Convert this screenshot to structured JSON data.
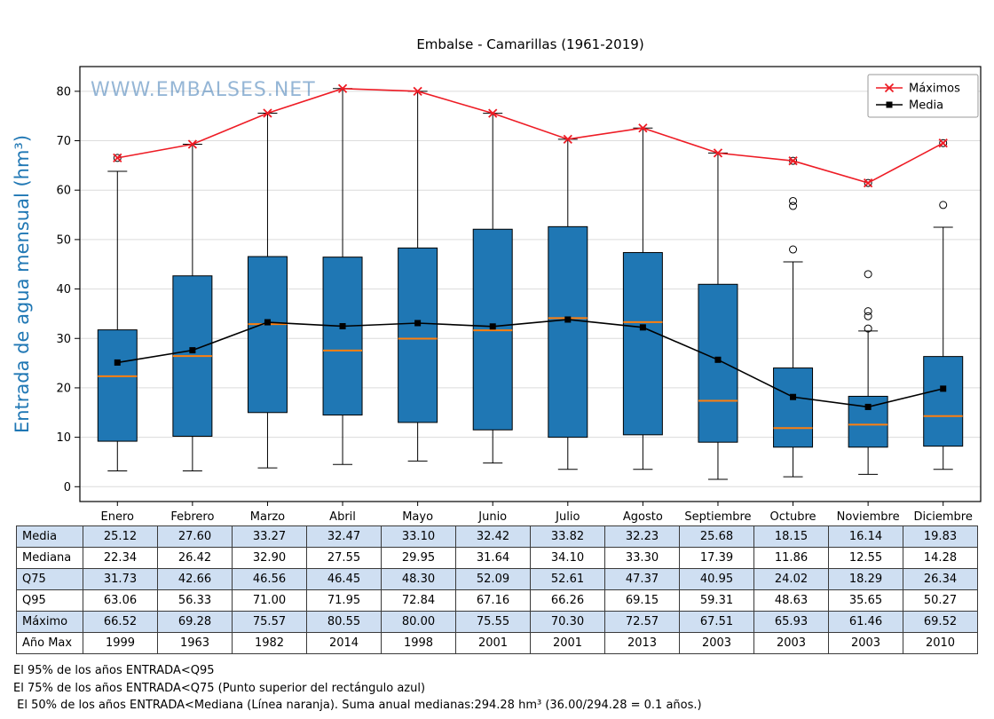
{
  "watermark": {
    "text": "WWW.EMBALSES.NET",
    "color": "#3f7cb6"
  },
  "chart_data": {
    "type": "boxplot",
    "title": "Embalse - Camarillas (1961-2019)",
    "ylabel": "Entrada de agua mensual (hm³)",
    "ylabel_color": "#1f77b4",
    "ylim": [
      -3,
      85
    ],
    "yticks": [
      0,
      10,
      20,
      30,
      40,
      50,
      60,
      70,
      80
    ],
    "grid": "horizontal",
    "legend_position": "top-right",
    "categories": [
      "Enero",
      "Febrero",
      "Marzo",
      "Abril",
      "Mayo",
      "Junio",
      "Julio",
      "Agosto",
      "Septiembre",
      "Octubre",
      "Noviembre",
      "Diciembre"
    ],
    "box_color": "#1f77b4",
    "median_color": "#ff7f0e",
    "boxes": [
      {
        "whisker_low": 3.2,
        "q1": 9.2,
        "median": 22.34,
        "q3": 31.73,
        "whisker_high": 63.8,
        "outliers": [
          66.52
        ]
      },
      {
        "whisker_low": 3.2,
        "q1": 10.2,
        "median": 26.42,
        "q3": 42.66,
        "whisker_high": 69.28,
        "outliers": []
      },
      {
        "whisker_low": 3.8,
        "q1": 15.0,
        "median": 32.9,
        "q3": 46.56,
        "whisker_high": 75.57,
        "outliers": []
      },
      {
        "whisker_low": 4.5,
        "q1": 14.5,
        "median": 27.55,
        "q3": 46.45,
        "whisker_high": 80.55,
        "outliers": []
      },
      {
        "whisker_low": 5.2,
        "q1": 13.0,
        "median": 29.95,
        "q3": 48.3,
        "whisker_high": 80.0,
        "outliers": []
      },
      {
        "whisker_low": 4.8,
        "q1": 11.5,
        "median": 31.64,
        "q3": 52.09,
        "whisker_high": 75.55,
        "outliers": []
      },
      {
        "whisker_low": 3.5,
        "q1": 10.0,
        "median": 34.1,
        "q3": 52.61,
        "whisker_high": 70.3,
        "outliers": []
      },
      {
        "whisker_low": 3.5,
        "q1": 10.5,
        "median": 33.3,
        "q3": 47.37,
        "whisker_high": 72.57,
        "outliers": []
      },
      {
        "whisker_low": 1.5,
        "q1": 9.0,
        "median": 17.39,
        "q3": 40.95,
        "whisker_high": 67.51,
        "outliers": []
      },
      {
        "whisker_low": 2.0,
        "q1": 8.0,
        "median": 11.86,
        "q3": 24.02,
        "whisker_high": 45.5,
        "outliers": [
          48.0,
          56.8,
          57.8,
          65.93
        ]
      },
      {
        "whisker_low": 2.5,
        "q1": 8.0,
        "median": 12.55,
        "q3": 18.29,
        "whisker_high": 31.5,
        "outliers": [
          32.0,
          34.5,
          35.5,
          43.0,
          61.46
        ]
      },
      {
        "whisker_low": 3.5,
        "q1": 8.2,
        "median": 14.28,
        "q3": 26.34,
        "whisker_high": 52.5,
        "outliers": [
          57.0,
          69.52
        ]
      }
    ],
    "series": [
      {
        "name": "Máximos",
        "color": "#ee1c25",
        "marker": "x",
        "values": [
          66.52,
          69.28,
          75.57,
          80.55,
          80.0,
          75.55,
          70.3,
          72.57,
          67.51,
          65.93,
          61.46,
          69.52
        ]
      },
      {
        "name": "Media",
        "color": "#000000",
        "marker": "square",
        "values": [
          25.12,
          27.6,
          33.27,
          32.47,
          33.1,
          32.42,
          33.82,
          32.23,
          25.68,
          18.15,
          16.14,
          19.83
        ]
      }
    ]
  },
  "table": {
    "shade_color": "#cfdff2",
    "rows": [
      {
        "label": "Media",
        "values": [
          "25.12",
          "27.60",
          "33.27",
          "32.47",
          "33.10",
          "32.42",
          "33.82",
          "32.23",
          "25.68",
          "18.15",
          "16.14",
          "19.83"
        ]
      },
      {
        "label": "Mediana",
        "values": [
          "22.34",
          "26.42",
          "32.90",
          "27.55",
          "29.95",
          "31.64",
          "34.10",
          "33.30",
          "17.39",
          "11.86",
          "12.55",
          "14.28"
        ]
      },
      {
        "label": "Q75",
        "values": [
          "31.73",
          "42.66",
          "46.56",
          "46.45",
          "48.30",
          "52.09",
          "52.61",
          "47.37",
          "40.95",
          "24.02",
          "18.29",
          "26.34"
        ]
      },
      {
        "label": "Q95",
        "values": [
          "63.06",
          "56.33",
          "71.00",
          "71.95",
          "72.84",
          "67.16",
          "66.26",
          "69.15",
          "59.31",
          "48.63",
          "35.65",
          "50.27"
        ]
      },
      {
        "label": "Máximo",
        "values": [
          "66.52",
          "69.28",
          "75.57",
          "80.55",
          "80.00",
          "75.55",
          "70.30",
          "72.57",
          "67.51",
          "65.93",
          "61.46",
          "69.52"
        ]
      },
      {
        "label": "Año Max",
        "values": [
          "1999",
          "1963",
          "1982",
          "2014",
          "1998",
          "2001",
          "2001",
          "2013",
          "2003",
          "2003",
          "2003",
          "2010"
        ]
      }
    ]
  },
  "footnotes": [
    "El 95% de los años ENTRADA<Q95",
    "El 75% de los años ENTRADA<Q75 (Punto superior del rectángulo azul)",
    " El 50% de los años ENTRADA<Mediana (Línea naranja). Suma anual medianas:294.28 hm³ (36.00/294.28 = 0.1 años.)"
  ]
}
